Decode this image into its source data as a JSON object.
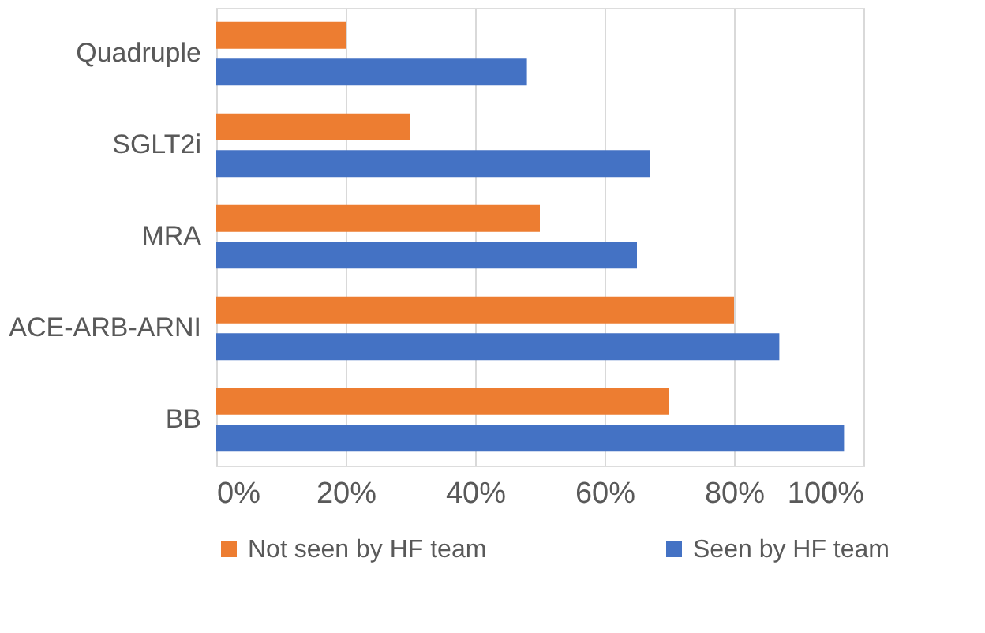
{
  "chart_data": {
    "type": "bar",
    "orientation": "horizontal",
    "categories": [
      "Quadruple",
      "SGLT2i",
      "MRA",
      "ACE-ARB-ARNI",
      "BB"
    ],
    "series": [
      {
        "name": "Not seen by HF team",
        "color": "#ed7d31",
        "values": [
          20,
          30,
          50,
          80,
          70
        ]
      },
      {
        "name": "Seen by HF team",
        "color": "#4472c4",
        "values": [
          48,
          67,
          65,
          87,
          97
        ]
      }
    ],
    "xlim": [
      0,
      100
    ],
    "xticks": [
      {
        "value": 0,
        "label": "0%"
      },
      {
        "value": 20,
        "label": "20%"
      },
      {
        "value": 40,
        "label": "40%"
      },
      {
        "value": 60,
        "label": "60%"
      },
      {
        "value": 80,
        "label": "80%"
      },
      {
        "value": 100,
        "label": "100%"
      }
    ],
    "grid": "x",
    "legend": "bottom"
  }
}
